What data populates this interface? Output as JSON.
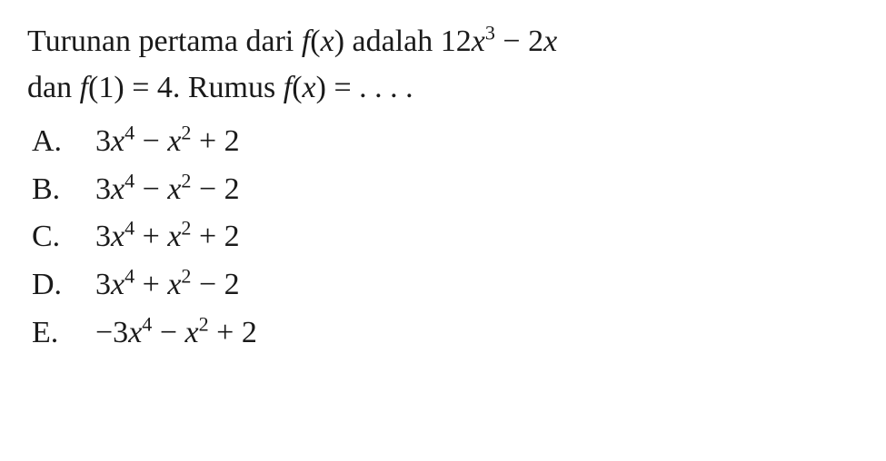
{
  "question": {
    "line1_part1": "Turunan pertama dari ",
    "line1_fx": "f",
    "line1_paren_open": "(",
    "line1_x": "x",
    "line1_paren_close": ") ",
    "line1_part2": "adalah 12",
    "line1_x2": "x",
    "line1_exp1": "3",
    "line1_part3": " − 2",
    "line1_x3": "x",
    "line2_part1": "dan ",
    "line2_f": "f",
    "line2_part2": "(1) = 4. Rumus ",
    "line2_f2": "f",
    "line2_paren_open": "(",
    "line2_x": "x",
    "line2_paren_close": ") ",
    "line2_part3": "= . . . ."
  },
  "options": {
    "a": {
      "label": "A.",
      "coef1": "3",
      "var1": "x",
      "exp1": "4",
      "op1": " − ",
      "var2": "x",
      "exp2": "2",
      "op2": " + 2"
    },
    "b": {
      "label": "B.",
      "coef1": "3",
      "var1": "x",
      "exp1": "4",
      "op1": " − ",
      "var2": "x",
      "exp2": "2",
      "op2": " − 2"
    },
    "c": {
      "label": "C.",
      "coef1": "3",
      "var1": "x",
      "exp1": "4",
      "op1": " + ",
      "var2": "x",
      "exp2": "2",
      "op2": " + 2"
    },
    "d": {
      "label": "D.",
      "coef1": "3",
      "var1": "x",
      "exp1": "4",
      "op1": " + ",
      "var2": "x",
      "exp2": "2",
      "op2": " − 2"
    },
    "e": {
      "label": "E.",
      "coef1": "−3",
      "var1": "x",
      "exp1": "4",
      "op1": " − ",
      "var2": "x",
      "exp2": "2",
      "op2": " + 2"
    }
  },
  "colors": {
    "background": "#ffffff",
    "text": "#1a1a1a"
  },
  "typography": {
    "font_family": "Times New Roman",
    "question_fontsize": 34,
    "option_fontsize": 34
  }
}
